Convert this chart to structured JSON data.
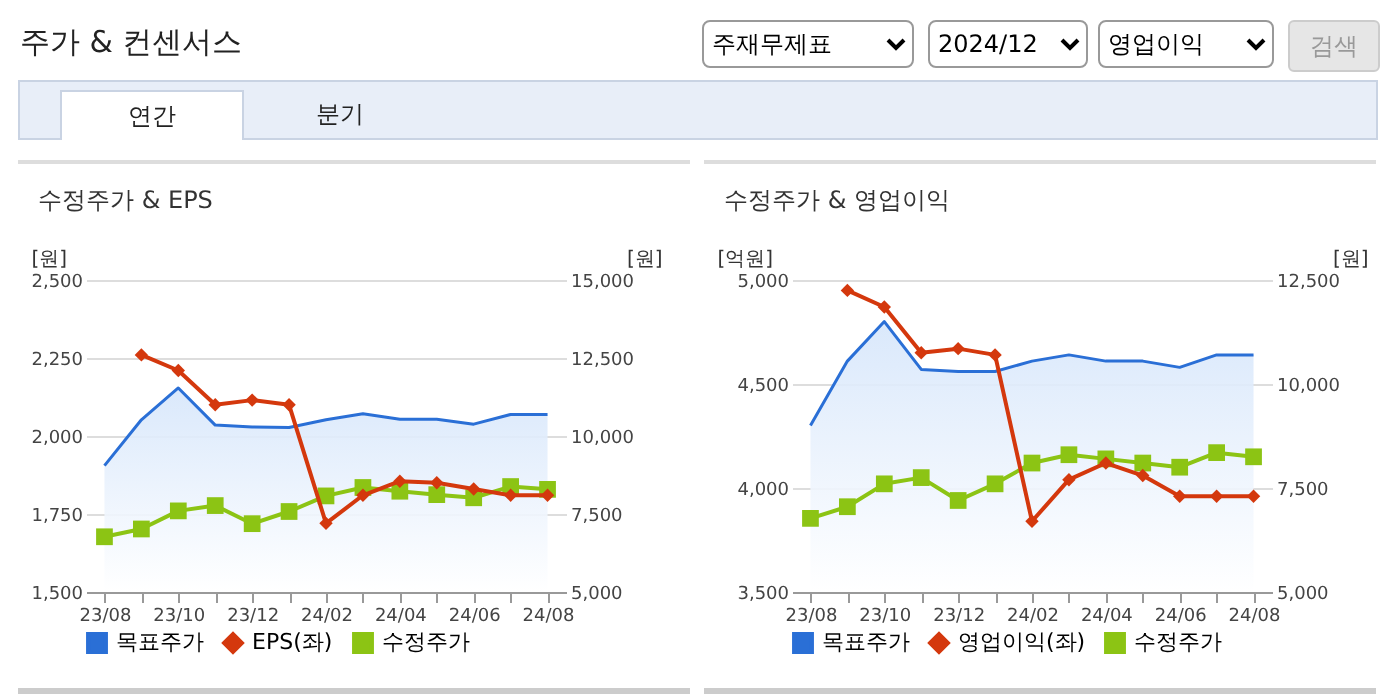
{
  "chart_data": [
    {
      "type": "other",
      "title": "주가 & 컨센서스",
      "annotations": [
        "주재무제표",
        "2024/12",
        "영업이익",
        "검색",
        "연간",
        "분기"
      ]
    },
    {
      "type": "line",
      "title": "수정주가 & EPS",
      "ylabel": "[원]",
      "y2label": "[원]",
      "categories": [
        "23/08",
        null,
        "23/10",
        null,
        "23/12",
        null,
        "24/02",
        null,
        "24/04",
        null,
        "24/06",
        null,
        "24/08"
      ],
      "ylim": [
        1500,
        2500
      ],
      "yticks": [
        {
          "value": 1500,
          "label": "1,500"
        },
        {
          "value": 1750,
          "label": "1,750"
        },
        {
          "value": 2000,
          "label": "2,000"
        },
        {
          "value": 2250,
          "label": "2,250"
        },
        {
          "value": 2500,
          "label": "2,500"
        }
      ],
      "y2lim": [
        5000,
        15000
      ],
      "y2ticks": [
        {
          "value": 5000,
          "label": "5,000"
        },
        {
          "value": 7500,
          "label": "7,500"
        },
        {
          "value": 10000,
          "label": "10,000"
        },
        {
          "value": 12500,
          "label": "12,500"
        },
        {
          "value": 15000,
          "label": "15,000"
        }
      ],
      "grid": "y",
      "legend": "bottom",
      "series": [
        {
          "name": "목표주가",
          "type": "area",
          "axis": "y2",
          "color": "#2a6fd6",
          "values": [
            9050,
            10520,
            11540,
            10350,
            10290,
            10270,
            10520,
            10710,
            10540,
            10540,
            10380,
            10690,
            10690
          ]
        },
        {
          "name": "EPS(좌)",
          "type": "line",
          "axis": "y",
          "color": "#d4380d",
          "marker": "diamond",
          "values": [
            null,
            2260,
            2210,
            2100,
            2115,
            2100,
            1720,
            1810,
            1855,
            1850,
            1830,
            1810,
            1810
          ]
        },
        {
          "name": "수정주가",
          "type": "line",
          "axis": "y2",
          "color": "#8cc414",
          "marker": "square",
          "values": [
            6770,
            7020,
            7600,
            7770,
            7190,
            7580,
            8080,
            8350,
            8230,
            8120,
            8020,
            8380,
            8290
          ]
        }
      ]
    },
    {
      "type": "line",
      "title": "수정주가 & 영업이익",
      "ylabel": "[억원]",
      "y2label": "[원]",
      "categories": [
        "23/08",
        null,
        "23/10",
        null,
        "23/12",
        null,
        "24/02",
        null,
        "24/04",
        null,
        "24/06",
        null,
        "24/08"
      ],
      "ylim": [
        3500,
        5000
      ],
      "yticks": [
        {
          "value": 3500,
          "label": "3,500"
        },
        {
          "value": 4000,
          "label": "4,000"
        },
        {
          "value": 4500,
          "label": "4,500"
        },
        {
          "value": 5000,
          "label": "5,000"
        }
      ],
      "y2lim": [
        5000,
        12500
      ],
      "y2ticks": [
        {
          "value": 5000,
          "label": "5,000"
        },
        {
          "value": 7500,
          "label": "7,500"
        },
        {
          "value": 10000,
          "label": "10,000"
        },
        {
          "value": 12500,
          "label": "12,500"
        }
      ],
      "grid": "y",
      "legend": "bottom",
      "series": [
        {
          "name": "목표주가",
          "type": "area",
          "axis": "y2",
          "color": "#2a6fd6",
          "values": [
            9000,
            10550,
            11500,
            10350,
            10300,
            10300,
            10550,
            10700,
            10550,
            10550,
            10400,
            10700,
            10700
          ]
        },
        {
          "name": "영업이익(좌)",
          "type": "line",
          "axis": "y",
          "color": "#d4380d",
          "marker": "diamond",
          "values": [
            null,
            4950,
            4870,
            4650,
            4670,
            4640,
            3840,
            4040,
            4120,
            4060,
            3960,
            3960,
            3960
          ]
        },
        {
          "name": "수정주가",
          "type": "line",
          "axis": "y2",
          "color": "#8cc414",
          "marker": "square",
          "values": [
            6770,
            7050,
            7600,
            7750,
            7200,
            7600,
            8100,
            8300,
            8200,
            8100,
            8000,
            8350,
            8250
          ]
        }
      ]
    }
  ]
}
